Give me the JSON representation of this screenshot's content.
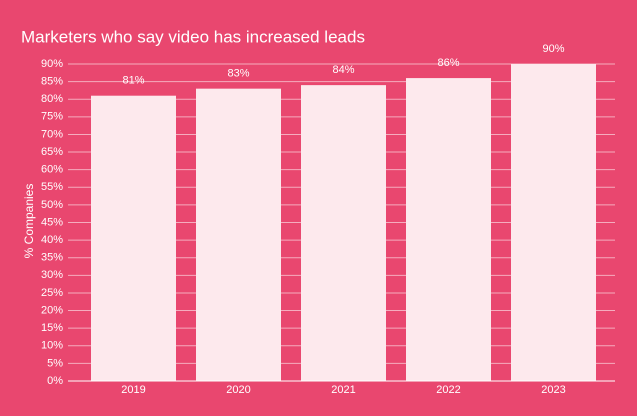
{
  "chart_data": {
    "type": "bar",
    "title": "Marketers who say video has increased leads",
    "y_label": "% Companies",
    "categories": [
      "2019",
      "2020",
      "2021",
      "2022",
      "2023"
    ],
    "values": [
      81,
      83,
      84,
      86,
      90
    ],
    "value_labels": [
      "81%",
      "83%",
      "84%",
      "86%",
      "90%"
    ],
    "color": "#fde9ed",
    "background": "#e9476f",
    "ylim": [
      0,
      90
    ],
    "yticks": [
      {
        "value": 0,
        "label": "0%"
      },
      {
        "value": 5,
        "label": "5%"
      },
      {
        "value": 10,
        "label": "10%"
      },
      {
        "value": 15,
        "label": "15%"
      },
      {
        "value": 20,
        "label": "20%"
      },
      {
        "value": 25,
        "label": "25%"
      },
      {
        "value": 30,
        "label": "30%"
      },
      {
        "value": 35,
        "label": "35%"
      },
      {
        "value": 40,
        "label": "40%"
      },
      {
        "value": 45,
        "label": "45%"
      },
      {
        "value": 50,
        "label": "50%"
      },
      {
        "value": 55,
        "label": "55%"
      },
      {
        "value": 60,
        "label": "60%"
      },
      {
        "value": 65,
        "label": "65%"
      },
      {
        "value": 70,
        "label": "70%"
      },
      {
        "value": 75,
        "label": "75%"
      },
      {
        "value": 80,
        "label": "80%"
      },
      {
        "value": 85,
        "label": "85%"
      },
      {
        "value": 90,
        "label": "90%"
      }
    ],
    "grid": true
  }
}
